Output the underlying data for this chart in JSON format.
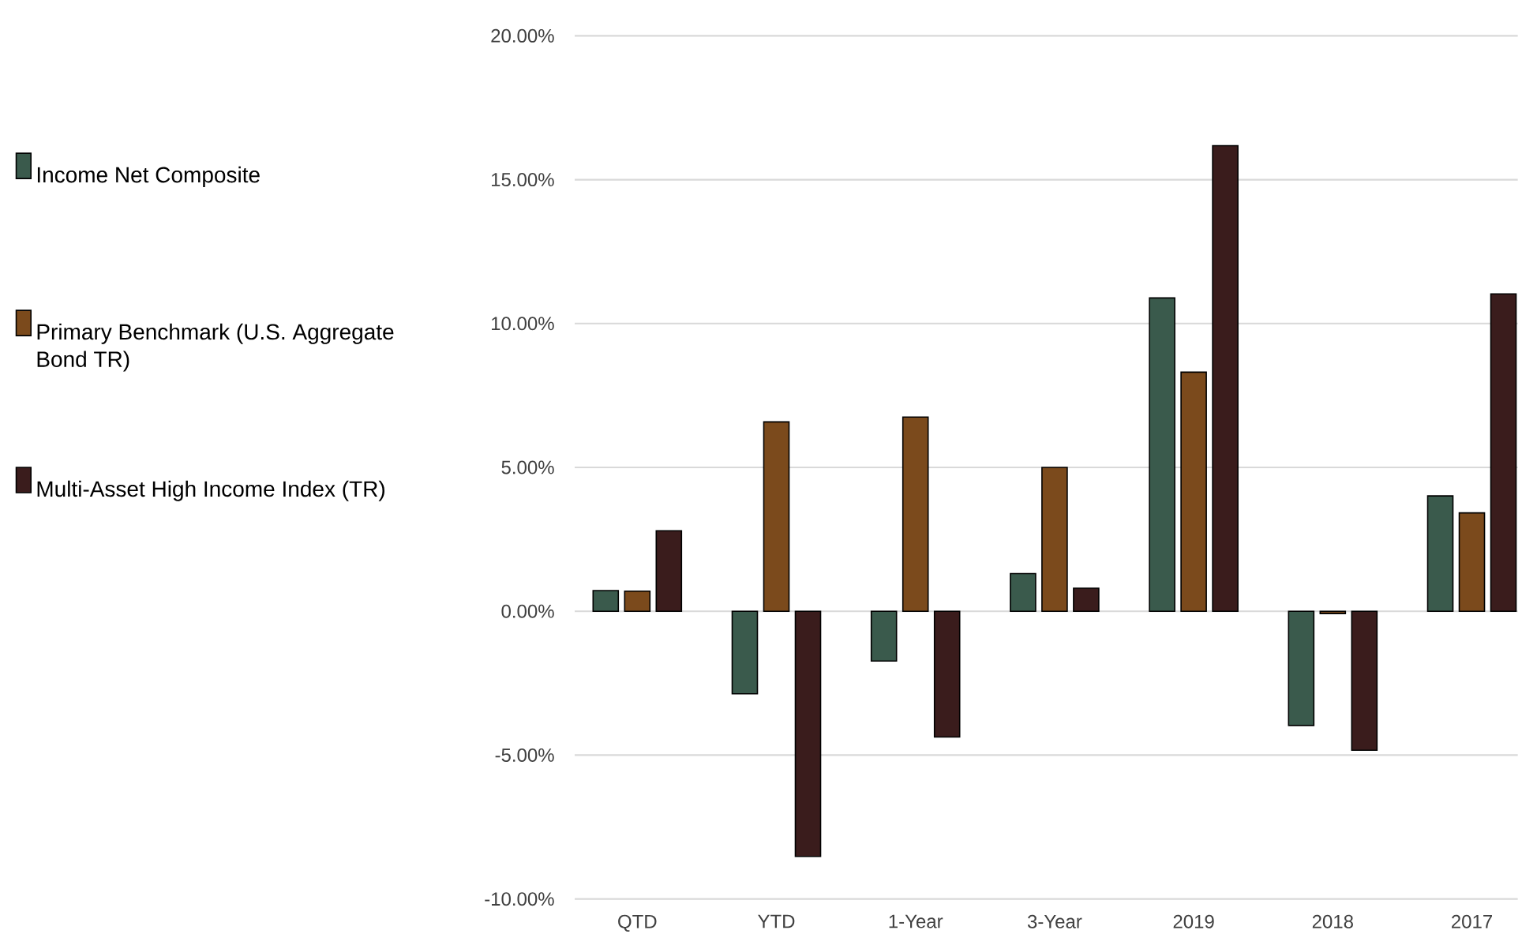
{
  "chart_data": {
    "type": "bar",
    "categories": [
      "QTD",
      "YTD",
      "1-Year",
      "3-Year",
      "2019",
      "2018",
      "2017"
    ],
    "series": [
      {
        "name": "Income Net Composite",
        "color": "#3a5a4c",
        "values": [
          0.72,
          -2.87,
          -1.73,
          1.31,
          10.89,
          -3.97,
          4.01
        ]
      },
      {
        "name": "Primary Benchmark (U.S. Aggregate Bond TR)",
        "color": "#7b4a1c",
        "values": [
          0.7,
          6.58,
          6.75,
          5.0,
          8.31,
          -0.08,
          3.42
        ]
      },
      {
        "name": "Multi-Asset High Income Index (TR)",
        "color": "#3a1c1c",
        "values": [
          2.8,
          -8.52,
          -4.37,
          0.8,
          16.18,
          -4.83,
          11.03
        ]
      }
    ],
    "ylim": [
      -10,
      20
    ],
    "yticks": [
      {
        "value": -10,
        "label": "-10.00%"
      },
      {
        "value": -5,
        "label": "-5.00%"
      },
      {
        "value": 0,
        "label": "0.00%"
      },
      {
        "value": 5,
        "label": "5.00%"
      },
      {
        "value": 10,
        "label": "10.00%"
      },
      {
        "value": 15,
        "label": "15.00%"
      },
      {
        "value": 20,
        "label": "20.00%"
      }
    ],
    "grid": "y",
    "legend": "left"
  }
}
